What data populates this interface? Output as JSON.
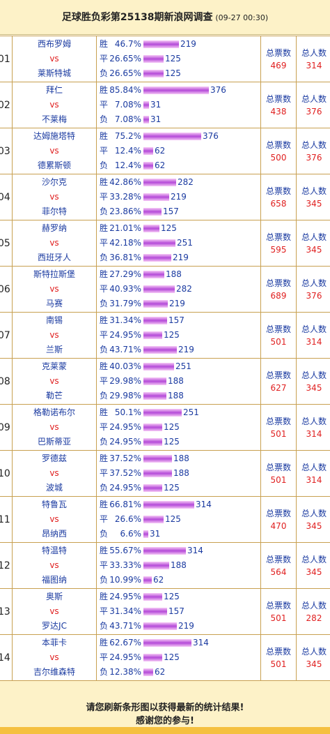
{
  "header": {
    "title": "足球胜负彩第25138期新浪网调查",
    "date": "(09-27 00:30)"
  },
  "labels": {
    "win": "胜",
    "draw": "平",
    "loss": "负",
    "vs": "vs",
    "total_votes": "总票数",
    "total_people": "总人数"
  },
  "matches": [
    {
      "num": "01",
      "home": "西布罗姆",
      "away": "莱斯特城",
      "win": {
        "pct": "46.7%",
        "count": "219",
        "frac": 0.467
      },
      "draw": {
        "pct": "26.65%",
        "count": "125",
        "frac": 0.2665
      },
      "loss": {
        "pct": "26.65%",
        "count": "125",
        "frac": 0.2665
      },
      "total_votes": "469",
      "total_people": "314"
    },
    {
      "num": "02",
      "home": "拜仁",
      "away": "不莱梅",
      "win": {
        "pct": "85.84%",
        "count": "376",
        "frac": 0.8584
      },
      "draw": {
        "pct": "7.08%",
        "count": "31",
        "frac": 0.0708
      },
      "loss": {
        "pct": "7.08%",
        "count": "31",
        "frac": 0.0708
      },
      "total_votes": "438",
      "total_people": "376"
    },
    {
      "num": "03",
      "home": "达姆施塔特",
      "away": "德累斯顿",
      "win": {
        "pct": "75.2%",
        "count": "376",
        "frac": 0.752
      },
      "draw": {
        "pct": "12.4%",
        "count": "62",
        "frac": 0.124
      },
      "loss": {
        "pct": "12.4%",
        "count": "62",
        "frac": 0.124
      },
      "total_votes": "500",
      "total_people": "376"
    },
    {
      "num": "04",
      "home": "沙尔克",
      "away": "菲尔特",
      "win": {
        "pct": "42.86%",
        "count": "282",
        "frac": 0.4286
      },
      "draw": {
        "pct": "33.28%",
        "count": "219",
        "frac": 0.3328
      },
      "loss": {
        "pct": "23.86%",
        "count": "157",
        "frac": 0.2386
      },
      "total_votes": "658",
      "total_people": "345"
    },
    {
      "num": "05",
      "home": "赫罗纳",
      "away": "西班牙人",
      "win": {
        "pct": "21.01%",
        "count": "125",
        "frac": 0.2101
      },
      "draw": {
        "pct": "42.18%",
        "count": "251",
        "frac": 0.4218
      },
      "loss": {
        "pct": "36.81%",
        "count": "219",
        "frac": 0.3681
      },
      "total_votes": "595",
      "total_people": "345"
    },
    {
      "num": "06",
      "home": "斯特拉斯堡",
      "away": "马赛",
      "win": {
        "pct": "27.29%",
        "count": "188",
        "frac": 0.2729
      },
      "draw": {
        "pct": "40.93%",
        "count": "282",
        "frac": 0.4093
      },
      "loss": {
        "pct": "31.79%",
        "count": "219",
        "frac": 0.3179
      },
      "total_votes": "689",
      "total_people": "376"
    },
    {
      "num": "07",
      "home": "南锡",
      "away": "兰斯",
      "win": {
        "pct": "31.34%",
        "count": "157",
        "frac": 0.3134
      },
      "draw": {
        "pct": "24.95%",
        "count": "125",
        "frac": 0.2495
      },
      "loss": {
        "pct": "43.71%",
        "count": "219",
        "frac": 0.4371
      },
      "total_votes": "501",
      "total_people": "314"
    },
    {
      "num": "08",
      "home": "克莱蒙",
      "away": "勒芒",
      "win": {
        "pct": "40.03%",
        "count": "251",
        "frac": 0.4003
      },
      "draw": {
        "pct": "29.98%",
        "count": "188",
        "frac": 0.2998
      },
      "loss": {
        "pct": "29.98%",
        "count": "188",
        "frac": 0.2998
      },
      "total_votes": "627",
      "total_people": "345"
    },
    {
      "num": "09",
      "home": "格勒诺布尔",
      "away": "巴斯蒂亚",
      "win": {
        "pct": "50.1%",
        "count": "251",
        "frac": 0.501
      },
      "draw": {
        "pct": "24.95%",
        "count": "125",
        "frac": 0.2495
      },
      "loss": {
        "pct": "24.95%",
        "count": "125",
        "frac": 0.2495
      },
      "total_votes": "501",
      "total_people": "314"
    },
    {
      "num": "10",
      "home": "罗德兹",
      "away": "波城",
      "win": {
        "pct": "37.52%",
        "count": "188",
        "frac": 0.3752
      },
      "draw": {
        "pct": "37.52%",
        "count": "188",
        "frac": 0.3752
      },
      "loss": {
        "pct": "24.95%",
        "count": "125",
        "frac": 0.2495
      },
      "total_votes": "501",
      "total_people": "314"
    },
    {
      "num": "11",
      "home": "特鲁瓦",
      "away": "昂纳西",
      "win": {
        "pct": "66.81%",
        "count": "314",
        "frac": 0.6681
      },
      "draw": {
        "pct": "26.6%",
        "count": "125",
        "frac": 0.266
      },
      "loss": {
        "pct": "6.6%",
        "count": "31",
        "frac": 0.066
      },
      "total_votes": "470",
      "total_people": "345"
    },
    {
      "num": "12",
      "home": "特温特",
      "away": "福图纳",
      "win": {
        "pct": "55.67%",
        "count": "314",
        "frac": 0.5567
      },
      "draw": {
        "pct": "33.33%",
        "count": "188",
        "frac": 0.3333
      },
      "loss": {
        "pct": "10.99%",
        "count": "62",
        "frac": 0.1099
      },
      "total_votes": "564",
      "total_people": "345"
    },
    {
      "num": "13",
      "home": "奥斯",
      "away": "罗达JC",
      "win": {
        "pct": "24.95%",
        "count": "125",
        "frac": 0.2495
      },
      "draw": {
        "pct": "31.34%",
        "count": "157",
        "frac": 0.3134
      },
      "loss": {
        "pct": "43.71%",
        "count": "219",
        "frac": 0.4371
      },
      "total_votes": "501",
      "total_people": "282"
    },
    {
      "num": "14",
      "home": "本菲卡",
      "away": "吉尔维森特",
      "win": {
        "pct": "62.67%",
        "count": "314",
        "frac": 0.6267
      },
      "draw": {
        "pct": "24.95%",
        "count": "125",
        "frac": 0.2495
      },
      "loss": {
        "pct": "12.38%",
        "count": "62",
        "frac": 0.1238
      },
      "total_votes": "501",
      "total_people": "345"
    }
  ],
  "footer": {
    "line1": "请您刷新条形图以获得最新的统计结果!",
    "line2": "感谢您的参与!"
  }
}
